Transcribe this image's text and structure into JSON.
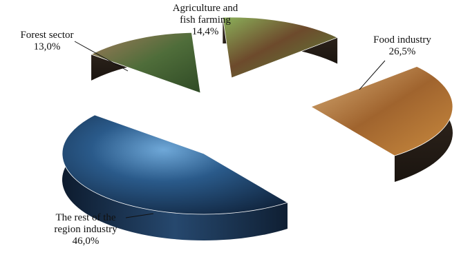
{
  "chart_data": {
    "type": "pie",
    "style": "3d exploded pie with photographic slice textures",
    "title": "",
    "slices": [
      {
        "label_lines": [
          "Forest sector"
        ],
        "value_text": "13,0%",
        "value": 13.0,
        "color": "#7a6a4a",
        "texture": "forest-photo"
      },
      {
        "label_lines": [
          "Agriculture and",
          "fish farming"
        ],
        "value_text": "14,4%",
        "value": 14.4,
        "color": "#7c9a4a",
        "texture": "cow-pasture-photo"
      },
      {
        "label_lines": [
          "Food industry"
        ],
        "value_text": "26,5%",
        "value": 26.5,
        "color": "#b07a3a",
        "texture": "pastries-photo"
      },
      {
        "label_lines": [
          "The rest of the",
          "region industry"
        ],
        "value_text": "46,0%",
        "value": 46.0,
        "color": "#1e3a5c",
        "texture": "industrial-city-photo"
      }
    ],
    "legend": "none",
    "grid": false
  }
}
